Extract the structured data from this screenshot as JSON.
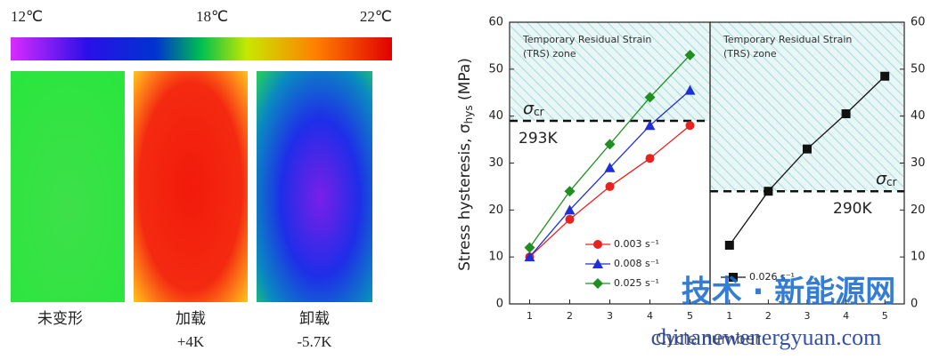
{
  "thermal": {
    "scale_labels": [
      "12℃",
      "18℃",
      "22℃"
    ],
    "panels": [
      {
        "label": "未变形",
        "delta": ""
      },
      {
        "label": "加载",
        "delta": "+4K"
      },
      {
        "label": "卸载",
        "delta": "-5.7K"
      }
    ]
  },
  "chart_data": [
    {
      "type": "line",
      "ylabel": [
        "Stress hysteresis, σ",
        "hys",
        " (MPa)"
      ],
      "xlabel": "Cycle number",
      "zone_label": [
        "Temporary Residual Strain",
        "(TRS) zone"
      ],
      "threshold": {
        "value": 39,
        "symbol": "σ",
        "subscript": "cr",
        "temperature": "293K"
      },
      "x": [
        1,
        2,
        3,
        4,
        5
      ],
      "xlim": [
        0.5,
        5.5
      ],
      "xticks": [
        1,
        2,
        3,
        4,
        5
      ],
      "ylim": [
        0,
        60
      ],
      "yticks": [
        0,
        10,
        20,
        30,
        40,
        50,
        60
      ],
      "series": [
        {
          "name": "0.003 s⁻¹",
          "color": "#e8231f",
          "marker": "circle",
          "values": [
            10,
            18,
            25,
            31,
            38
          ]
        },
        {
          "name": "0.008 s⁻¹",
          "color": "#1f2fd6",
          "marker": "triangle",
          "values": [
            10,
            20,
            29,
            38,
            45.5
          ]
        },
        {
          "name": "0.025 s⁻¹",
          "color": "#1f8f1f",
          "marker": "diamond",
          "values": [
            12,
            24,
            34,
            44,
            53
          ]
        }
      ]
    },
    {
      "type": "line",
      "zone_label": [
        "Temporary Residual Strain",
        "(TRS) zone"
      ],
      "threshold": {
        "value": 24,
        "symbol": "σ",
        "subscript": "cr",
        "temperature": "290K"
      },
      "x": [
        1,
        2,
        3,
        4,
        5
      ],
      "xlim": [
        0.5,
        5.5
      ],
      "xticks": [
        1,
        2,
        3,
        4,
        5
      ],
      "ylim": [
        0,
        60
      ],
      "yticks": [
        0,
        10,
        20,
        30,
        40,
        50,
        60
      ],
      "series": [
        {
          "name": "0.026 s⁻¹",
          "color": "#111111",
          "marker": "square",
          "values": [
            12.5,
            24,
            33,
            40.5,
            48.5
          ]
        }
      ]
    }
  ],
  "watermark": [
    "技术 · 新能源网",
    "chinanewenergyuan.com"
  ]
}
